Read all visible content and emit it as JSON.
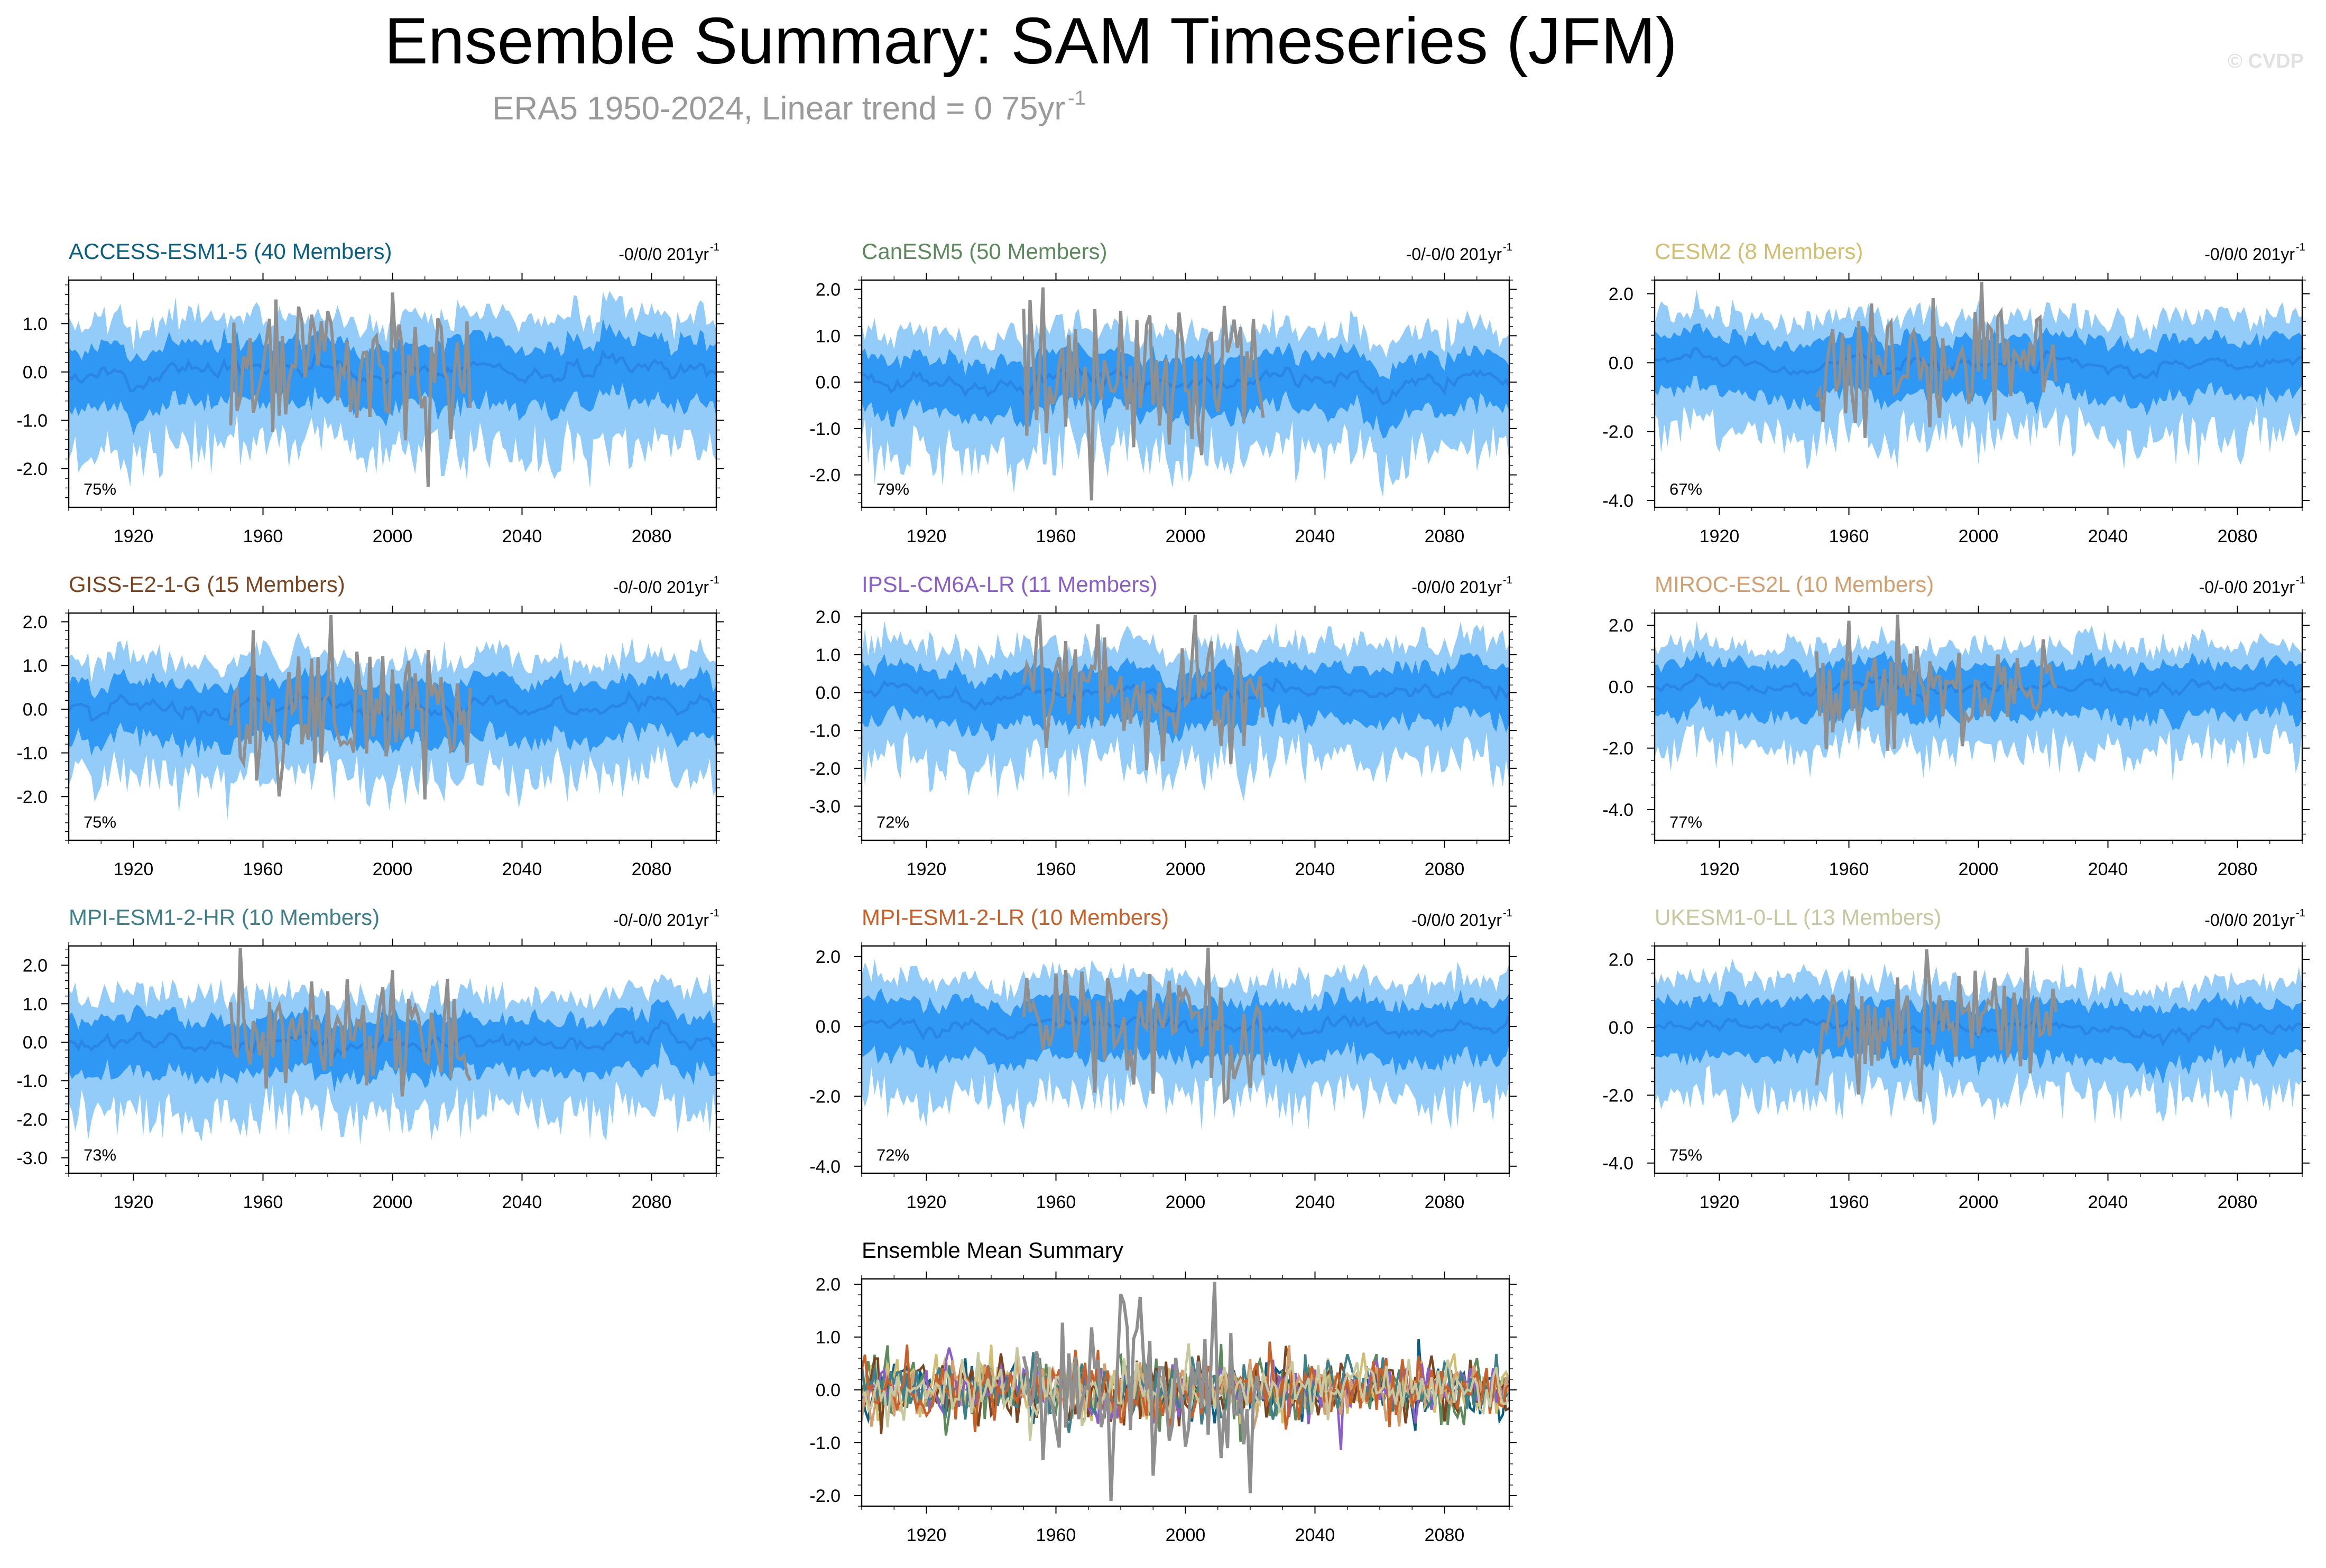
{
  "header": {
    "title": "Ensemble Summary: SAM Timeseries (JFM)",
    "subtitle": "ERA5 1950-2024, Linear trend = 0 75yr",
    "subtitle_sup": "-1",
    "copyright": "© CVDP"
  },
  "chart_data": [
    {
      "type": "area",
      "title": "ACCESS-ESM1-5 (40 Members)",
      "title_color": "#0b5f83",
      "trend": "-0/0/0 201yr",
      "trend_sup": "-1",
      "percent": "75%",
      "ylim": [
        -2.8,
        1.9
      ],
      "yticks": [
        1.0,
        0.0,
        -1.0,
        -2.0
      ],
      "ytick_labels": [
        "1.0",
        "0.0",
        "-1.0",
        "-2.0"
      ],
      "xlim": [
        1900,
        2100
      ],
      "xticks": [
        1920,
        1960,
        2000,
        2040,
        2080
      ],
      "xtick_labels": [
        "1920",
        "1960",
        "2000",
        "2040",
        "2080"
      ],
      "outer_width": 1.05,
      "inner_width": 0.55,
      "obs_range": [
        1950,
        2024
      ],
      "seed": 11
    },
    {
      "type": "area",
      "title": "CanESM5 (50 Members)",
      "title_color": "#5c8a5c",
      "trend": "-0/-0/0 201yr",
      "trend_sup": "-1",
      "percent": "79%",
      "ylim": [
        -2.7,
        2.2
      ],
      "yticks": [
        2.0,
        1.0,
        0.0,
        -1.0,
        -2.0
      ],
      "ytick_labels": [
        "2.0",
        "1.0",
        "0.0",
        "-1.0",
        "-2.0"
      ],
      "xlim": [
        1900,
        2100
      ],
      "xticks": [
        1920,
        1960,
        2000,
        2040,
        2080
      ],
      "xtick_labels": [
        "1920",
        "1960",
        "2000",
        "2040",
        "2080"
      ],
      "outer_width": 1.0,
      "inner_width": 0.5,
      "obs_range": [
        1950,
        2024
      ],
      "seed": 23
    },
    {
      "type": "area",
      "title": "CESM2 (8 Members)",
      "title_color": "#d2be70",
      "trend": "-0/0/0 201yr",
      "trend_sup": "-1",
      "percent": "67%",
      "ylim": [
        -4.2,
        2.4
      ],
      "yticks": [
        2.0,
        0.0,
        -2.0,
        -4.0
      ],
      "ytick_labels": [
        "2.0",
        "0.0",
        "-2.0",
        "-4.0"
      ],
      "xlim": [
        1900,
        2100
      ],
      "xticks": [
        1920,
        1960,
        2000,
        2040,
        2080
      ],
      "xtick_labels": [
        "1920",
        "1960",
        "2000",
        "2040",
        "2080"
      ],
      "outer_width": 1.3,
      "inner_width": 0.7,
      "obs_range": [
        1950,
        2024
      ],
      "seed": 37
    },
    {
      "type": "area",
      "title": "GISS-E2-1-G (15 Members)",
      "title_color": "#7a4520",
      "trend": "-0/-0/0 201yr",
      "trend_sup": "-1",
      "percent": "75%",
      "ylim": [
        -3.0,
        2.2
      ],
      "yticks": [
        2.0,
        1.0,
        0.0,
        -1.0,
        -2.0
      ],
      "ytick_labels": [
        "2.0",
        "1.0",
        "0.0",
        "-1.0",
        "-2.0"
      ],
      "xlim": [
        1900,
        2100
      ],
      "xticks": [
        1920,
        1960,
        2000,
        2040,
        2080
      ],
      "xtick_labels": [
        "1920",
        "1960",
        "2000",
        "2040",
        "2080"
      ],
      "outer_width": 1.05,
      "inner_width": 0.55,
      "obs_range": [
        1950,
        2024
      ],
      "seed": 41
    },
    {
      "type": "area",
      "title": "IPSL-CM6A-LR (11 Members)",
      "title_color": "#8a5fc8",
      "trend": "-0/0/0 201yr",
      "trend_sup": "-1",
      "percent": "72%",
      "ylim": [
        -3.9,
        2.1
      ],
      "yticks": [
        2.0,
        1.0,
        0.0,
        -1.0,
        -2.0,
        -3.0
      ],
      "ytick_labels": [
        "2.0",
        "1.0",
        "0.0",
        "-1.0",
        "-2.0",
        "-3.0"
      ],
      "xlim": [
        1900,
        2100
      ],
      "xticks": [
        1920,
        1960,
        2000,
        2040,
        2080
      ],
      "xtick_labels": [
        "1920",
        "1960",
        "2000",
        "2040",
        "2080"
      ],
      "outer_width": 1.2,
      "inner_width": 0.6,
      "obs_range": [
        1950,
        2024
      ],
      "seed": 53
    },
    {
      "type": "area",
      "title": "MIROC-ES2L (10 Members)",
      "title_color": "#d2a070",
      "trend": "-0/-0/0 201yr",
      "trend_sup": "-1",
      "percent": "77%",
      "ylim": [
        -5.0,
        2.4
      ],
      "yticks": [
        2.0,
        0.0,
        -2.0,
        -4.0
      ],
      "ytick_labels": [
        "2.0",
        "0.0",
        "-2.0",
        "-4.0"
      ],
      "xlim": [
        1900,
        2100
      ],
      "xticks": [
        1920,
        1960,
        2000,
        2040,
        2080
      ],
      "xtick_labels": [
        "1920",
        "1960",
        "2000",
        "2040",
        "2080"
      ],
      "outer_width": 1.3,
      "inner_width": 0.7,
      "obs_range": [
        1950,
        2024
      ],
      "seed": 67
    },
    {
      "type": "area",
      "title": "MPI-ESM1-2-HR (10 Members)",
      "title_color": "#3f7f8a",
      "trend": "-0/-0/0 201yr",
      "trend_sup": "-1",
      "percent": "73%",
      "ylim": [
        -3.4,
        2.5
      ],
      "yticks": [
        2.0,
        1.0,
        0.0,
        -1.0,
        -2.0,
        -3.0
      ],
      "ytick_labels": [
        "2.0",
        "1.0",
        "0.0",
        "-1.0",
        "-2.0",
        "-3.0"
      ],
      "xlim": [
        1900,
        2100
      ],
      "xticks": [
        1920,
        1960,
        2000,
        2040,
        2080
      ],
      "xtick_labels": [
        "1920",
        "1960",
        "2000",
        "2040",
        "2080"
      ],
      "outer_width": 1.2,
      "inner_width": 0.6,
      "obs_range": [
        1950,
        2024
      ],
      "seed": 71
    },
    {
      "type": "area",
      "title": "MPI-ESM1-2-LR (10 Members)",
      "title_color": "#c8602a",
      "trend": "-0/0/0 201yr",
      "trend_sup": "-1",
      "percent": "72%",
      "ylim": [
        -4.2,
        2.3
      ],
      "yticks": [
        2.0,
        0.0,
        -2.0,
        -4.0
      ],
      "ytick_labels": [
        "2.0",
        "0.0",
        "-2.0",
        "-4.0"
      ],
      "xlim": [
        1900,
        2100
      ],
      "xticks": [
        1920,
        1960,
        2000,
        2040,
        2080
      ],
      "xtick_labels": [
        "1920",
        "1960",
        "2000",
        "2040",
        "2080"
      ],
      "outer_width": 1.3,
      "inner_width": 0.7,
      "obs_range": [
        1950,
        2024
      ],
      "seed": 83
    },
    {
      "type": "area",
      "title": "UKESM1-0-LL (13 Members)",
      "title_color": "#c8c8a0",
      "trend": "-0/0/0 201yr",
      "trend_sup": "-1",
      "percent": "75%",
      "ylim": [
        -4.3,
        2.4
      ],
      "yticks": [
        2.0,
        0.0,
        -2.0,
        -4.0
      ],
      "ytick_labels": [
        "2.0",
        "0.0",
        "-2.0",
        "-4.0"
      ],
      "xlim": [
        1900,
        2100
      ],
      "xticks": [
        1920,
        1960,
        2000,
        2040,
        2080
      ],
      "xtick_labels": [
        "1920",
        "1960",
        "2000",
        "2040",
        "2080"
      ],
      "outer_width": 1.3,
      "inner_width": 0.7,
      "obs_range": [
        1950,
        2024
      ],
      "seed": 97
    },
    {
      "type": "line",
      "title": "Ensemble Mean Summary",
      "title_color": "#000000",
      "ylim": [
        -2.2,
        2.1
      ],
      "yticks": [
        2.0,
        1.0,
        0.0,
        -1.0,
        -2.0
      ],
      "ytick_labels": [
        "2.0",
        "1.0",
        "0.0",
        "-1.0",
        "-2.0"
      ],
      "xlim": [
        1900,
        2100
      ],
      "xticks": [
        1920,
        1960,
        2000,
        2040,
        2080
      ],
      "xtick_labels": [
        "1920",
        "1960",
        "2000",
        "2040",
        "2080"
      ],
      "series_colors": [
        "#0b5f83",
        "#5c8a5c",
        "#d2be70",
        "#7a4520",
        "#8a5fc8",
        "#d2a070",
        "#3f7f8a",
        "#c8602a",
        "#c8c8a0",
        "#8f8f8f"
      ],
      "obs_range": [
        1950,
        2024
      ],
      "seed": 5
    }
  ],
  "colors": {
    "outer_band": "#93cbf9",
    "inner_band": "#2f97f4",
    "ensemble_mean": "#2a86e4",
    "observations": "#8f8f8f"
  }
}
